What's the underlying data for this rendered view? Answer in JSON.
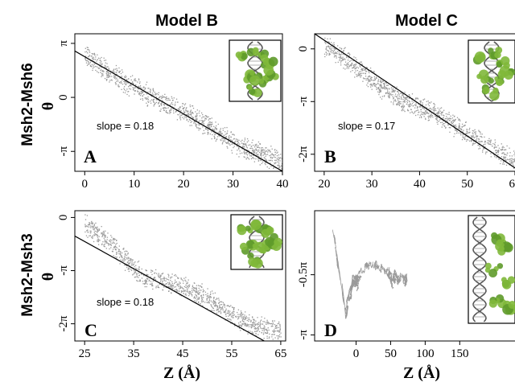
{
  "column_titles": [
    "Model B",
    "Model C"
  ],
  "row_labels": [
    "Msh2-Msh6",
    "Msh2-Msh3"
  ],
  "theta_symbol": "θ",
  "x_axis_label": "Z (Å)",
  "colors": {
    "data": "#9a9a9a",
    "fit": "#000000",
    "protein": "#5e9a2a",
    "dna": "#555555"
  },
  "chart_data": [
    {
      "panel": "A",
      "type": "scatter",
      "fit_line": true,
      "annotation": "slope = 0.18",
      "xlim": [
        -2,
        40
      ],
      "ylim": [
        -4.3,
        3.7
      ],
      "xticks": [
        0,
        10,
        20,
        30,
        40
      ],
      "xtick_labels": [
        "0",
        "10",
        "20",
        "30",
        "40"
      ],
      "yticks": [
        3.1416,
        0,
        -3.1416
      ],
      "ytick_labels": [
        "π",
        "0",
        "-π"
      ],
      "x": [
        0,
        4,
        8,
        12,
        16,
        20,
        24,
        28,
        32,
        36,
        40
      ],
      "y": [
        2.4,
        1.7,
        0.9,
        0.3,
        -0.3,
        -0.8,
        -1.5,
        -2.3,
        -2.9,
        -3.3,
        -3.7
      ],
      "fit_x": [
        -2,
        40
      ],
      "fit_y": [
        2.7,
        -4.3
      ],
      "inset": true
    },
    {
      "panel": "B",
      "type": "scatter",
      "fit_line": true,
      "annotation": "slope = 0.17",
      "xlim": [
        18,
        60
      ],
      "ylim": [
        -7.3,
        0.9
      ],
      "xticks": [
        20,
        30,
        40,
        50,
        60
      ],
      "xtick_labels": [
        "20",
        "30",
        "40",
        "50",
        "60"
      ],
      "yticks": [
        0,
        -3.1416,
        -6.2832
      ],
      "ytick_labels": [
        "0",
        "-π",
        "-2π"
      ],
      "x": [
        20,
        24,
        28,
        32,
        36,
        40,
        44,
        48,
        52,
        56,
        60
      ],
      "y": [
        0.2,
        -0.5,
        -1.4,
        -2.3,
        -3.0,
        -3.5,
        -3.9,
        -4.7,
        -5.4,
        -6.1,
        -6.6
      ],
      "fit_x": [
        18,
        60
      ],
      "fit_y": [
        0.9,
        -7.1
      ],
      "inset": true
    },
    {
      "panel": "C",
      "type": "scatter",
      "fit_line": true,
      "annotation": "slope = 0.18",
      "xlim": [
        23,
        66
      ],
      "ylim": [
        -7.3,
        0.4
      ],
      "xticks": [
        25,
        35,
        45,
        55,
        65
      ],
      "xtick_labels": [
        "25",
        "35",
        "45",
        "55",
        "65"
      ],
      "yticks": [
        0,
        -3.1416,
        -6.2832
      ],
      "ytick_labels": [
        "0",
        "-π",
        "-2π"
      ],
      "x": [
        25,
        29,
        33,
        37,
        41,
        45,
        49,
        53,
        57,
        61,
        65
      ],
      "y": [
        -0.4,
        -1.2,
        -2.4,
        -3.5,
        -3.8,
        -4.1,
        -4.6,
        -5.3,
        -6.1,
        -6.5,
        -6.6
      ],
      "fit_x": [
        23,
        66
      ],
      "fit_y": [
        -1.1,
        -8.0
      ],
      "inset": true
    },
    {
      "panel": "D",
      "type": "line",
      "fit_line": false,
      "annotation": "",
      "xlim": [
        -60,
        230
      ],
      "ylim": [
        -3.3,
        0.1
      ],
      "xticks": [
        0,
        50,
        100,
        150
      ],
      "xtick_labels": [
        "0",
        "50",
        "100",
        "150"
      ],
      "yticks": [
        -1.5708,
        -3.1416
      ],
      "ytick_labels": [
        "-0.5π",
        "-π"
      ],
      "x": [
        -35,
        -30,
        -20,
        -15,
        -5,
        10,
        25,
        40,
        55,
        70,
        85,
        100,
        110,
        118,
        125,
        130
      ],
      "y": [
        -0.3,
        -0.9,
        -1.9,
        -2.5,
        -1.8,
        -1.5,
        -1.3,
        -1.5,
        -1.6,
        -1.8,
        -2.0,
        -1.5,
        -0.8,
        -1.7,
        -2.1,
        -2.6
      ],
      "inset": true
    }
  ]
}
